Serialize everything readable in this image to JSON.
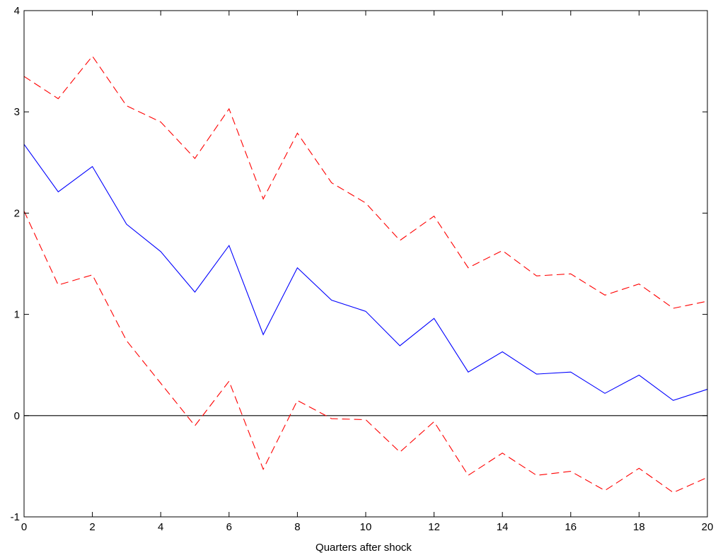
{
  "chart_data": {
    "type": "line",
    "title": "",
    "xlabel": "Quarters after shock",
    "ylabel": "",
    "xlim": [
      0,
      20
    ],
    "ylim": [
      -1,
      4
    ],
    "grid": false,
    "legend": "none",
    "x_ticks": [
      0,
      2,
      4,
      6,
      8,
      10,
      12,
      14,
      16,
      18,
      20
    ],
    "y_ticks": [
      -1,
      0,
      1,
      2,
      3,
      4
    ],
    "x": [
      0,
      1,
      2,
      3,
      4,
      5,
      6,
      7,
      8,
      9,
      10,
      11,
      12,
      13,
      14,
      15,
      16,
      17,
      18,
      19,
      20
    ],
    "series": [
      {
        "style": "solid",
        "color": "#0000ff",
        "values": [
          2.68,
          2.21,
          2.46,
          1.89,
          1.62,
          1.22,
          1.68,
          0.8,
          1.46,
          1.14,
          1.03,
          0.69,
          0.96,
          0.43,
          0.63,
          0.41,
          0.43,
          0.22,
          0.4,
          0.15,
          0.26
        ]
      },
      {
        "style": "dashed",
        "color": "#ff0000",
        "values": [
          3.35,
          3.13,
          3.55,
          3.06,
          2.9,
          2.54,
          3.03,
          2.14,
          2.79,
          2.3,
          2.1,
          1.73,
          1.97,
          1.46,
          1.63,
          1.38,
          1.4,
          1.19,
          1.3,
          1.06,
          1.13
        ]
      },
      {
        "style": "dashed",
        "color": "#ff0000",
        "values": [
          2.02,
          1.29,
          1.39,
          0.74,
          0.32,
          -0.1,
          0.34,
          -0.53,
          0.15,
          -0.03,
          -0.04,
          -0.36,
          -0.06,
          -0.59,
          -0.37,
          -0.59,
          -0.55,
          -0.74,
          -0.52,
          -0.76,
          -0.61
        ]
      }
    ],
    "reference_line": {
      "y": 0,
      "color": "#000000"
    }
  }
}
